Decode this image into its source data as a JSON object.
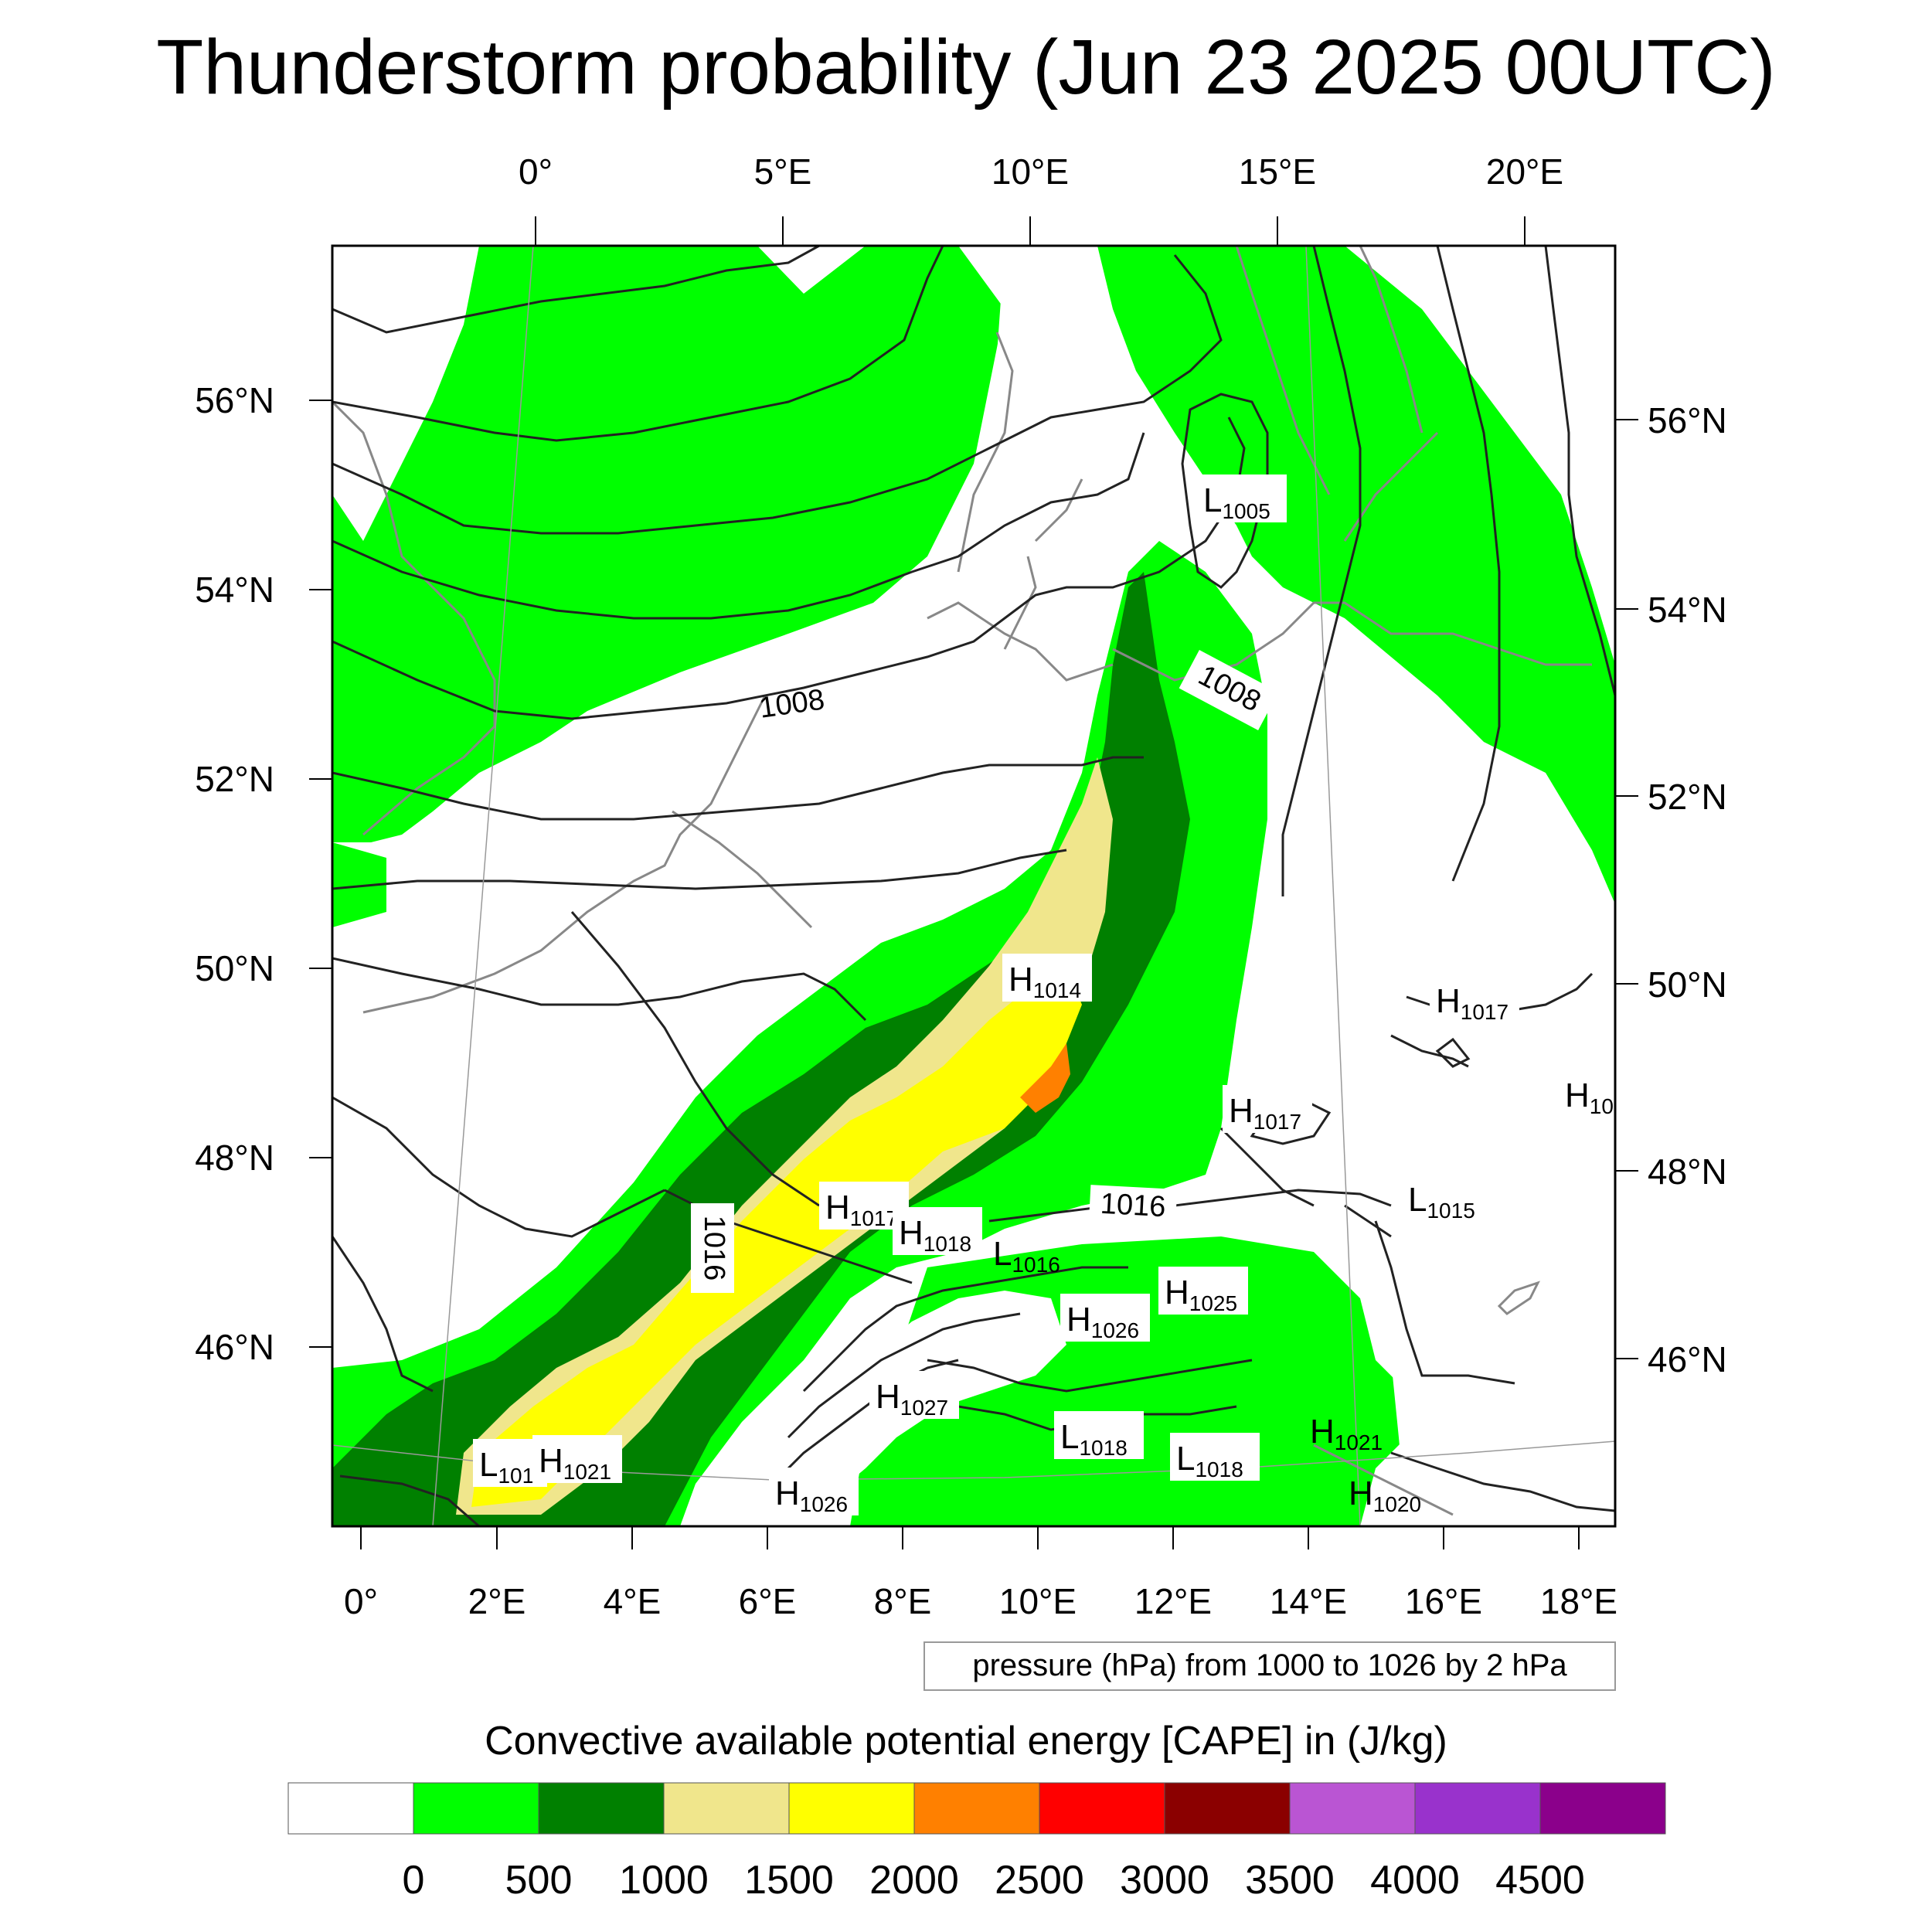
{
  "title": "Thunderstorm probability (Jun 23 2025 00UTC)",
  "map": {
    "top_lon_labels": [
      "0°",
      "5°E",
      "10°E",
      "15°E",
      "20°E"
    ],
    "bottom_lon_labels": [
      "0°",
      "2°E",
      "4°E",
      "6°E",
      "8°E",
      "10°E",
      "12°E",
      "14°E",
      "16°E",
      "18°E"
    ],
    "left_lat_labels": [
      "56°N",
      "54°N",
      "52°N",
      "50°N",
      "48°N",
      "46°N"
    ],
    "right_lat_labels": [
      "56°N",
      "54°N",
      "52°N",
      "50°N",
      "48°N",
      "46°N"
    ],
    "isobar_labels": [
      {
        "text": "1008"
      },
      {
        "text": "1008"
      },
      {
        "text": "1016"
      },
      {
        "text": "1016"
      }
    ],
    "pressure_centers": [
      {
        "type": "L",
        "value": "1005"
      },
      {
        "type": "H",
        "value": "1014"
      },
      {
        "type": "H",
        "value": "1017"
      },
      {
        "type": "H",
        "value": "1017"
      },
      {
        "type": "H",
        "value": "10"
      },
      {
        "type": "H",
        "value": "1017"
      },
      {
        "type": "H",
        "value": "1018"
      },
      {
        "type": "L",
        "value": "1015"
      },
      {
        "type": "L",
        "value": "1016"
      },
      {
        "type": "H",
        "value": "1025"
      },
      {
        "type": "H",
        "value": "1026"
      },
      {
        "type": "H",
        "value": "1027"
      },
      {
        "type": "L",
        "value": "1018"
      },
      {
        "type": "L",
        "value": "1018"
      },
      {
        "type": "H",
        "value": "1021"
      },
      {
        "type": "H",
        "value": "1020"
      },
      {
        "type": "L",
        "value": "101"
      },
      {
        "type": "H",
        "value": "1021"
      },
      {
        "type": "H",
        "value": "1026"
      }
    ],
    "contour_note": "pressure (hPa) from 1000 to 1026 by 2 hPa"
  },
  "legend": {
    "title": "Convective available potential energy [CAPE] in (J/kg)",
    "colors": [
      "#ffffff",
      "#00ff00",
      "#008000",
      "#f0e68c",
      "#ffff00",
      "#ff8000",
      "#ff0000",
      "#8b0000",
      "#ba55d3",
      "#9932cc",
      "#8b008b"
    ],
    "labels": [
      "0",
      "500",
      "1000",
      "1500",
      "2000",
      "2500",
      "3000",
      "3500",
      "4000",
      "4500"
    ]
  }
}
